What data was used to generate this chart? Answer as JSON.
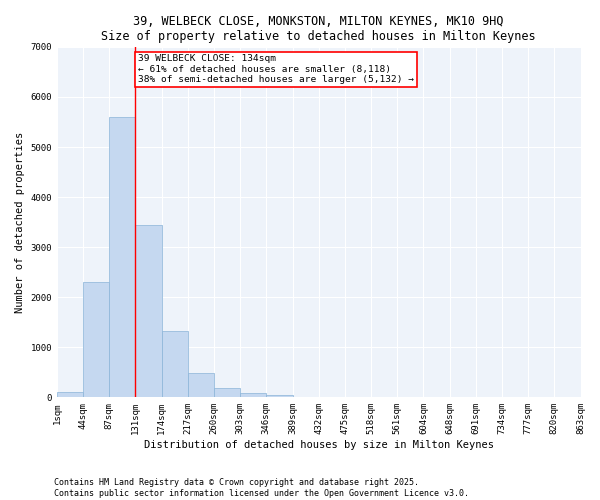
{
  "title_line1": "39, WELBECK CLOSE, MONKSTON, MILTON KEYNES, MK10 9HQ",
  "title_line2": "Size of property relative to detached houses in Milton Keynes",
  "xlabel": "Distribution of detached houses by size in Milton Keynes",
  "ylabel": "Number of detached properties",
  "bar_values": [
    100,
    2300,
    5600,
    3450,
    1320,
    490,
    185,
    80,
    45,
    0,
    0,
    0,
    0,
    0,
    0,
    0,
    0,
    0,
    0,
    0
  ],
  "bar_labels": [
    "1sqm",
    "44sqm",
    "87sqm",
    "131sqm",
    "174sqm",
    "217sqm",
    "260sqm",
    "303sqm",
    "346sqm",
    "389sqm",
    "432sqm",
    "475sqm",
    "518sqm",
    "561sqm",
    "604sqm",
    "648sqm",
    "691sqm",
    "734sqm",
    "777sqm",
    "820sqm",
    "863sqm"
  ],
  "bar_color": "#c5d8f0",
  "bar_edge_color": "#8ab4d8",
  "vline_x": 3,
  "vline_color": "red",
  "annotation_text": "39 WELBECK CLOSE: 134sqm\n← 61% of detached houses are smaller (8,118)\n38% of semi-detached houses are larger (5,132) →",
  "annotation_box_color": "red",
  "annotation_bg": "white",
  "ylim": [
    0,
    7000
  ],
  "yticks": [
    0,
    1000,
    2000,
    3000,
    4000,
    5000,
    6000,
    7000
  ],
  "bg_color": "#eef3fa",
  "grid_color": "white",
  "footer": "Contains HM Land Registry data © Crown copyright and database right 2025.\nContains public sector information licensed under the Open Government Licence v3.0.",
  "title_fontsize": 8.5,
  "axis_label_fontsize": 7.5,
  "tick_fontsize": 6.5,
  "annotation_fontsize": 6.8,
  "ylabel_fontsize": 7.5
}
